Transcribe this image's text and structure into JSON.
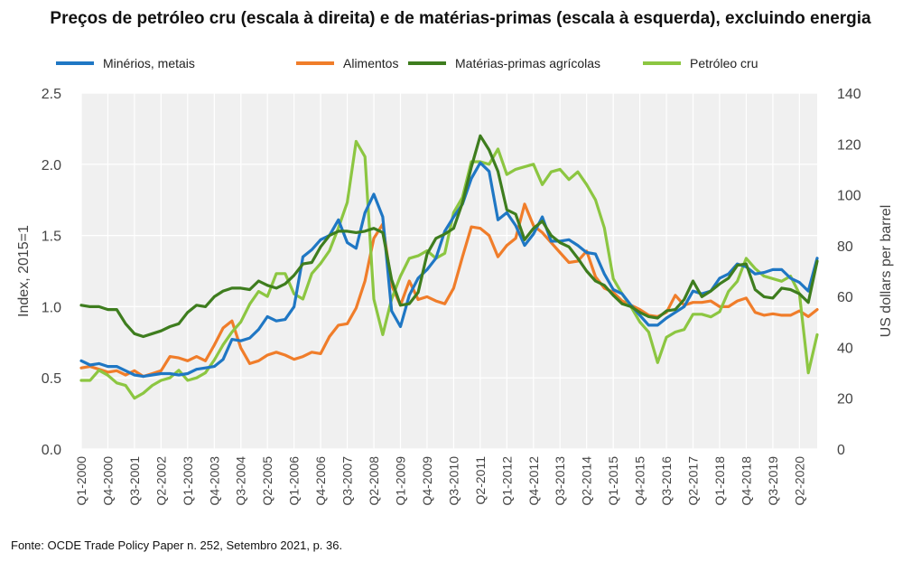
{
  "title": "Preços de petróleo cru (escala à direita) e de matérias-primas (escala à esquerda), excluindo energia",
  "source": "Fonte: OCDE Trade Policy Paper n. 252, Setembro   2021, p. 36.",
  "colors": {
    "minerios": "#1f77c4",
    "alimentos": "#f07d2a",
    "agricolas": "#3e7d1e",
    "petroleo": "#8cc641",
    "plot_bg": "#f0f0f0",
    "grid": "#ffffff"
  },
  "chart_data": {
    "type": "line",
    "title": "Preços de petróleo cru (escala à direita) e de matérias-primas (escala à esquerda), excluindo energia",
    "ylabel": "Index, 2015=1",
    "y2label": "US dollars per barrel",
    "ylim": [
      0,
      2.5
    ],
    "y2lim": [
      0,
      140
    ],
    "yticks": [
      "0.0",
      "0.5",
      "1.0",
      "1.5",
      "2.0",
      "2.5"
    ],
    "y2ticks": [
      "0",
      "20",
      "40",
      "60",
      "80",
      "100",
      "120",
      "140"
    ],
    "x_start": "Q1-2000",
    "x_end": "Q4-2020",
    "xtick_labels": [
      "Q1-2000",
      "Q4-2000",
      "Q3-2001",
      "Q2-2002",
      "Q1-2003",
      "Q4-2003",
      "Q3-2004",
      "Q2-2005",
      "Q1-2006",
      "Q4-2006",
      "Q3-2007",
      "Q2-2008",
      "Q1-2009",
      "Q4-2009",
      "Q3-2010",
      "Q2-2011",
      "Q1-2012",
      "Q4-2012",
      "Q3-2013",
      "Q2-2014",
      "Q1-2015",
      "Q4-2015",
      "Q3-2016",
      "Q2-2017",
      "Q1-2018",
      "Q4-2018",
      "Q3-2019",
      "Q2-2020"
    ],
    "grid": true,
    "legend_position": "top",
    "series": [
      {
        "name": "Minérios, metais",
        "axis": "left",
        "values": [
          0.62,
          0.59,
          0.6,
          0.58,
          0.58,
          0.55,
          0.52,
          0.51,
          0.52,
          0.53,
          0.53,
          0.52,
          0.53,
          0.56,
          0.57,
          0.58,
          0.63,
          0.77,
          0.76,
          0.78,
          0.84,
          0.93,
          0.9,
          0.91,
          1.0,
          1.35,
          1.4,
          1.47,
          1.5,
          1.61,
          1.45,
          1.41,
          1.66,
          1.79,
          1.63,
          0.97,
          0.86,
          1.08,
          1.2,
          1.26,
          1.34,
          1.53,
          1.63,
          1.72,
          1.9,
          2.01,
          1.95,
          1.61,
          1.66,
          1.57,
          1.43,
          1.51,
          1.63,
          1.46,
          1.46,
          1.47,
          1.43,
          1.38,
          1.37,
          1.23,
          1.12,
          1.09,
          1.01,
          0.94,
          0.87,
          0.87,
          0.92,
          0.96,
          1.0,
          1.11,
          1.09,
          1.11,
          1.2,
          1.23,
          1.3,
          1.28,
          1.23,
          1.24,
          1.26,
          1.26,
          1.2,
          1.17,
          1.11,
          1.34
        ]
      },
      {
        "name": "Alimentos",
        "axis": "left",
        "values": [
          0.57,
          0.58,
          0.56,
          0.54,
          0.55,
          0.52,
          0.55,
          0.51,
          0.53,
          0.55,
          0.65,
          0.64,
          0.62,
          0.65,
          0.62,
          0.73,
          0.85,
          0.9,
          0.71,
          0.6,
          0.62,
          0.66,
          0.68,
          0.66,
          0.63,
          0.65,
          0.68,
          0.67,
          0.79,
          0.87,
          0.88,
          0.99,
          1.18,
          1.48,
          1.58,
          1.15,
          1.01,
          1.18,
          1.05,
          1.07,
          1.04,
          1.02,
          1.13,
          1.35,
          1.56,
          1.55,
          1.5,
          1.35,
          1.43,
          1.48,
          1.72,
          1.57,
          1.52,
          1.45,
          1.38,
          1.31,
          1.32,
          1.39,
          1.21,
          1.13,
          1.1,
          1.04,
          1.01,
          0.98,
          0.94,
          0.93,
          0.96,
          1.08,
          1.01,
          1.03,
          1.03,
          1.04,
          1.0,
          1.0,
          1.04,
          1.06,
          0.96,
          0.94,
          0.95,
          0.94,
          0.94,
          0.97,
          0.93,
          0.98
        ]
      },
      {
        "name": "Matérias-primas agrícolas",
        "axis": "left",
        "values": [
          1.01,
          1.0,
          1.0,
          0.98,
          0.98,
          0.88,
          0.81,
          0.79,
          0.81,
          0.83,
          0.86,
          0.88,
          0.96,
          1.01,
          1.0,
          1.07,
          1.11,
          1.13,
          1.13,
          1.12,
          1.18,
          1.15,
          1.13,
          1.16,
          1.22,
          1.3,
          1.31,
          1.42,
          1.5,
          1.53,
          1.53,
          1.52,
          1.53,
          1.55,
          1.52,
          1.19,
          1.01,
          1.02,
          1.1,
          1.37,
          1.48,
          1.51,
          1.55,
          1.73,
          1.98,
          2.2,
          2.1,
          1.95,
          1.68,
          1.65,
          1.47,
          1.55,
          1.6,
          1.5,
          1.45,
          1.42,
          1.34,
          1.25,
          1.18,
          1.15,
          1.08,
          1.02,
          1.0,
          0.96,
          0.93,
          0.92,
          0.97,
          0.98,
          1.05,
          1.18,
          1.07,
          1.11,
          1.16,
          1.2,
          1.29,
          1.3,
          1.12,
          1.07,
          1.06,
          1.13,
          1.12,
          1.09,
          1.03,
          1.32
        ]
      },
      {
        "name": "Petróleo cru",
        "axis": "right",
        "values": [
          27,
          27,
          31,
          29,
          26,
          25,
          20,
          22,
          25,
          27,
          28,
          31,
          27,
          28,
          30,
          35,
          41,
          46,
          50,
          57,
          62,
          60,
          69,
          69,
          61,
          59,
          69,
          73,
          78,
          87,
          97,
          121,
          115,
          59,
          45,
          59,
          68,
          75,
          76,
          78,
          75,
          77,
          93,
          99,
          113,
          113,
          112,
          118,
          108,
          110,
          111,
          112,
          104,
          109,
          110,
          106,
          109,
          104,
          98,
          87,
          67,
          61,
          56,
          50,
          46,
          34,
          44,
          46,
          47,
          53,
          53,
          52,
          54,
          62,
          66,
          75,
          71,
          68,
          67,
          66,
          68,
          61,
          30,
          45
        ]
      }
    ]
  }
}
